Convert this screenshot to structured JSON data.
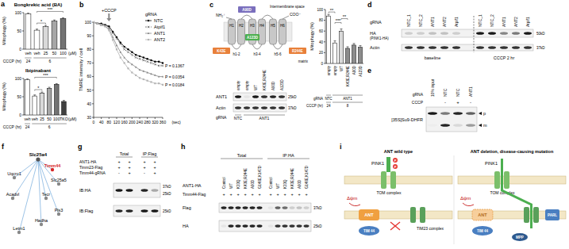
{
  "panel_labels": [
    "a",
    "b",
    "c",
    "d",
    "e",
    "f",
    "g",
    "h",
    "i"
  ],
  "chart_data": [
    {
      "type": "bar",
      "title": "Bongkrekic acid (BA)",
      "y_label": "Mitophagy (%)",
      "categories": [
        "veh",
        "veh",
        "25",
        "50",
        "100"
      ],
      "values": [
        97,
        52,
        62,
        77,
        84
      ],
      "errors": [
        2,
        3,
        3,
        3,
        2
      ],
      "colors": [
        "#ffffff",
        "#ffffff",
        "#d9d9d9",
        "#a6a6a6",
        "#737373"
      ],
      "unit": "(μM)",
      "ylim": [
        0,
        100
      ],
      "yticks": [
        0,
        50,
        100
      ],
      "group_rows": [
        {
          "label": "CCCP (hr)",
          "groups": [
            {
              "label": "24",
              "span": [
                0,
                0
              ]
            },
            {
              "label": "6",
              "span": [
                1,
                4
              ]
            }
          ]
        }
      ],
      "significance": [
        {
          "between": [
            1,
            2
          ],
          "label": "*"
        },
        {
          "between": [
            1,
            4
          ],
          "label": "***"
        }
      ]
    },
    {
      "type": "bar",
      "title": "Ibipinabant",
      "y_label": "Mitophagy (%)",
      "categories": [
        "veh",
        "veh",
        "25",
        "50",
        "100",
        "TKO"
      ],
      "values": [
        97,
        52,
        60,
        73,
        84,
        37
      ],
      "errors": [
        2,
        3,
        3,
        3,
        2,
        3
      ],
      "colors": [
        "#ffffff",
        "#ffffff",
        "#d9d9d9",
        "#a6a6a6",
        "#737373",
        "#404040"
      ],
      "unit": "(μM)",
      "ylim": [
        0,
        100
      ],
      "yticks": [
        0,
        50,
        100
      ],
      "group_rows": [
        {
          "label": "CCCP (hr)",
          "groups": [
            {
              "label": "24",
              "span": [
                0,
                0
              ]
            },
            {
              "label": "6",
              "span": [
                1,
                5
              ]
            }
          ]
        }
      ],
      "significance": [
        {
          "between": [
            1,
            2
          ],
          "label": "*"
        },
        {
          "between": [
            1,
            4
          ],
          "label": "***"
        }
      ]
    },
    {
      "type": "line",
      "y_label": "TMRE intensity / cell",
      "x_label": "(sec)",
      "x": [
        0,
        20,
        40,
        60,
        80,
        100,
        120,
        140,
        160,
        180,
        200,
        220,
        240,
        260,
        280,
        300,
        320,
        340,
        360
      ],
      "xlim": [
        0,
        360
      ],
      "xticks": [
        0,
        40,
        80,
        120,
        160,
        200,
        240,
        280,
        320,
        360
      ],
      "ylim": [
        30,
        100
      ],
      "yticks": [
        30,
        40,
        50,
        60,
        70,
        80,
        90,
        100
      ],
      "legend": "upper right",
      "legend_title": "gRNA",
      "series": [
        {
          "name": "NTC",
          "color": "#000000",
          "marker": "circle",
          "line_style": "solid",
          "values": [
            100,
            99,
            99,
            98,
            97,
            93,
            89,
            85,
            82,
            80,
            78,
            76,
            75,
            74,
            73,
            72,
            71,
            71,
            70
          ]
        },
        {
          "name": "Atpif1",
          "color": "#555555",
          "marker": "cross",
          "line_style": "dashed",
          "p_value": "P = 0.1367",
          "values": [
            100,
            99,
            98,
            98,
            96,
            92,
            88,
            84,
            80,
            78,
            76,
            74,
            73,
            72,
            71,
            70,
            69,
            68,
            68
          ]
        },
        {
          "name": "ANT1",
          "color": "#888888",
          "marker": "triangle",
          "line_style": "solid",
          "p_value": "P = 0.0354",
          "values": [
            100,
            99,
            98,
            97,
            95,
            89,
            83,
            78,
            74,
            71,
            69,
            67,
            65,
            64,
            63,
            62,
            61,
            60,
            60
          ]
        },
        {
          "name": "ANT2",
          "color": "#b5b5b5",
          "marker": "square",
          "line_style": "solid",
          "p_value": "P = 0.0184",
          "values": [
            100,
            99,
            98,
            97,
            94,
            87,
            80,
            74,
            70,
            66,
            63,
            61,
            59,
            58,
            57,
            56,
            55,
            55,
            54
          ]
        }
      ],
      "annotations": [
        {
          "text": "+CCCP",
          "x": 80
        }
      ]
    },
    {
      "type": "bar",
      "y_label": "Mitophagy (%)",
      "categories": [
        "empty",
        "empty",
        "WT",
        "K43E,R244E",
        "A90D",
        "A123D"
      ],
      "values": [
        88,
        38,
        60,
        28,
        34,
        30
      ],
      "errors": [
        3,
        4,
        4,
        3,
        3,
        3
      ],
      "colors": [
        "#ffffff",
        "#ffffff",
        "#d9d9d9",
        "#8c8c8c",
        "#8c8c8c",
        "#8c8c8c"
      ],
      "ylim": [
        0,
        100
      ],
      "yticks": [
        0,
        20,
        40,
        60,
        80,
        100
      ],
      "group_rows": [
        {
          "label": "gRNA",
          "groups": [
            {
              "label": "NTC",
              "span": [
                0,
                0
              ]
            },
            {
              "label": "ANT1",
              "span": [
                1,
                5
              ]
            }
          ]
        },
        {
          "label": "CCCP (hr)",
          "groups": [
            {
              "label": "24",
              "span": [
                0,
                0
              ]
            },
            {
              "label": "8",
              "span": [
                1,
                5
              ]
            }
          ]
        }
      ],
      "significance": [
        {
          "between": [
            0,
            1
          ],
          "label": "**"
        },
        {
          "between": [
            1,
            2
          ],
          "label": "***"
        },
        {
          "between": [
            2,
            3
          ],
          "label": "**"
        }
      ]
    }
  ],
  "figure": {
    "c_diagram": {
      "n_term": "NH₂⁺",
      "c_term": "COO⁻",
      "ims": "Intermembrane space",
      "matrix": "matrix",
      "helices": [
        "H1",
        "H2",
        "H3",
        "H4",
        "H5",
        "H6"
      ],
      "loops": [
        "h1-2",
        "h3-4",
        "h5-6"
      ],
      "mutations": [
        "K43E",
        "A90D",
        "A123D",
        "R244E"
      ]
    },
    "c_blot": {
      "lanes": [
        "empty",
        "empty",
        "WT",
        "K43E,R244E",
        "A90D",
        "A123D"
      ],
      "group_label": "gRNA",
      "groups": [
        {
          "label": "NTC",
          "span": [
            0,
            0
          ]
        },
        {
          "label": "ANT1",
          "span": [
            1,
            5
          ]
        }
      ],
      "rows": [
        {
          "label": "ANT1",
          "sizes": [
            "25kD"
          ],
          "bands": [
            0.9,
            0.05,
            0.9,
            0.8,
            0.85,
            0.8
          ]
        },
        {
          "label": "Actin",
          "sizes": [
            "37kD"
          ],
          "bands": [
            0.8,
            0.8,
            0.8,
            0.8,
            0.8,
            0.8
          ]
        }
      ]
    },
    "d": {
      "group_label": "gRNA",
      "lanes": [
        "NTC_1",
        "NTC_2",
        "ANT1",
        "ANT2",
        "Atpif1",
        "NTC_1",
        "NTC_2",
        "ANT1",
        "ANT2",
        "Atpif1"
      ],
      "rows": [
        {
          "label": "HA",
          "sublabel": "(PINK1-HA)",
          "sizes": [
            "50kD"
          ],
          "bands": [
            0.15,
            0.15,
            0.2,
            0.2,
            0.15,
            0.9,
            0.9,
            0.45,
            0.5,
            0.9
          ]
        },
        {
          "label": "Actin",
          "sizes": [
            "37kD"
          ],
          "bands": [
            0.8,
            0.8,
            0.8,
            0.8,
            0.8,
            0.8,
            0.8,
            0.8,
            0.8,
            0.8
          ]
        }
      ],
      "conditions": [
        {
          "label": "baseline",
          "span": [
            0,
            4
          ]
        },
        {
          "label": "CCCP 2 hr",
          "span": [
            5,
            9
          ]
        }
      ]
    },
    "e": {
      "title": "[35S]Su9-DHFR",
      "group_label": "gRNA",
      "lanes": [
        "10% input",
        "NTC",
        "NTC",
        "ANT1"
      ],
      "treatment_label": "CCCP",
      "treatments": [
        {
          "lane": 1,
          "label": "-"
        },
        {
          "lane": 2,
          "label": "+"
        },
        {
          "lane": 3,
          "label": "-"
        }
      ],
      "rows": [
        {
          "label": "p",
          "bands": [
            0.9,
            0.5,
            0.85,
            0.6
          ]
        },
        {
          "label": "m",
          "bands": [
            0.02,
            0.85,
            0.1,
            0.35
          ]
        }
      ]
    },
    "f": {
      "center": "Slc25a4",
      "nodes": [
        {
          "label": "Timm44",
          "highlight": true
        },
        {
          "label": "Uqcrc1",
          "highlight": false
        },
        {
          "label": "Slc25a5",
          "highlight": false
        },
        {
          "label": "Acadvl",
          "highlight": false
        },
        {
          "label": "Tecr",
          "highlight": false
        },
        {
          "label": "Pls3",
          "highlight": false
        },
        {
          "label": "Hadha",
          "highlight": false
        },
        {
          "label": "Letm1",
          "highlight": false
        }
      ]
    },
    "g": {
      "headers": [
        {
          "label": "Total",
          "span": [
            0,
            1
          ]
        },
        {
          "label": "IP:Flag",
          "span": [
            2,
            3
          ]
        }
      ],
      "condition_rows": [
        {
          "label": "ANT1-HA",
          "signs": [
            "+",
            "+",
            "+",
            "+"
          ]
        },
        {
          "label": "Timm23-Flag",
          "signs": [
            "+",
            "+",
            "+",
            "+"
          ]
        },
        {
          "label": "Timm44-gRNA",
          "signs": [
            "-",
            "+",
            "-",
            "+"
          ]
        }
      ],
      "rows": [
        {
          "label": "IB:HA",
          "sizes": [
            "37kD",
            "25kD"
          ],
          "bands": [
            0.9,
            0.9,
            0.85,
            0.3
          ]
        },
        {
          "label": "IB:Flag",
          "sizes": [
            "25kD"
          ],
          "bands": [
            0.85,
            0.85,
            0.9,
            0.9
          ]
        }
      ]
    },
    "h": {
      "headers": [
        {
          "label": "Total",
          "span": [
            0,
            5
          ]
        },
        {
          "label": "IP:HA",
          "span": [
            6,
            11
          ]
        }
      ],
      "lane_label": "ANT1-HA",
      "lanes": [
        "Control",
        "WT",
        "K33Q",
        "K43E,R244E",
        "A90D",
        "G146E,K147D",
        "Control",
        "WT",
        "K33Q",
        "K43E,R244E",
        "A90D",
        "G146E,K147D"
      ],
      "condition_rows": [
        {
          "label": "Timm44-Flag",
          "signs": [
            "+",
            "+",
            "+",
            "+",
            "+",
            "+",
            "+",
            "+",
            "+",
            "+",
            "+",
            "+"
          ]
        }
      ],
      "rows": [
        {
          "label": "Flag",
          "sizes": [
            "37kD"
          ],
          "bands": [
            0.85,
            0.85,
            0.85,
            0.85,
            0.85,
            0.85,
            0.05,
            0.6,
            0.55,
            0.15,
            0.2,
            0.15
          ]
        },
        {
          "label": "HA",
          "sizes": [
            "25kD"
          ],
          "bands": [
            0.05,
            0.85,
            0.85,
            0.85,
            0.85,
            0.85,
            0.05,
            0.8,
            0.8,
            0.8,
            0.8,
            0.8
          ]
        }
      ]
    },
    "i": {
      "titles": [
        "ANT wild type",
        "ANT deletion, disease-causing mutation"
      ],
      "dpsi": "Δψm",
      "pink1": "PINK1",
      "p": "P",
      "tom": "TOM complex",
      "tim23": "TIM23 complex",
      "ant": "ANT",
      "tim44": "TIM 44",
      "parl": "PARL",
      "mpp": "MPP"
    }
  }
}
